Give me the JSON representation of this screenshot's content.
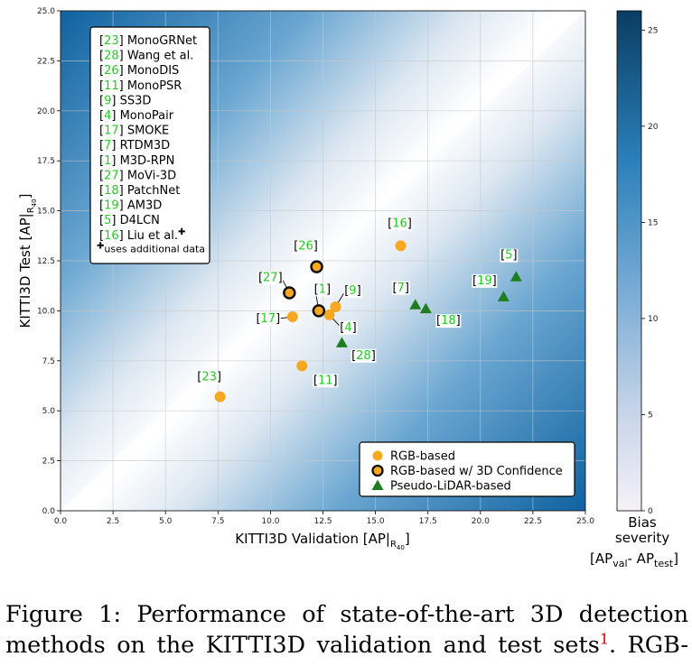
{
  "chart_data": {
    "type": "scatter",
    "xlabel": "KITTI3D Validation [AP|",
    "xlabel_sub": "R",
    "xlabel_subsub": "40",
    "xlabel_end": "]",
    "ylabel": "KITTI3D Test [AP|",
    "ylabel_sub": "R",
    "ylabel_subsub": "40",
    "ylabel_end": "]",
    "xlim": [
      0,
      25
    ],
    "ylim": [
      0,
      25
    ],
    "xticks": [
      "0.0",
      "2.5",
      "5.0",
      "7.5",
      "10.0",
      "12.5",
      "15.0",
      "17.5",
      "20.0",
      "22.5",
      "25.0"
    ],
    "yticks": [
      "0.0",
      "2.5",
      "5.0",
      "7.5",
      "10.0",
      "12.5",
      "15.0",
      "17.5",
      "20.0",
      "22.5",
      "25.0"
    ],
    "colorbar": {
      "range": [
        0,
        26
      ],
      "ticks": [
        "0",
        "5",
        "10",
        "15",
        "20",
        "25"
      ],
      "label_line1": "Bias",
      "label_line2": "severity",
      "label_formula_open": "[AP",
      "label_formula_sub1": "val",
      "label_formula_mid": "- AP",
      "label_formula_sub2": "test",
      "label_formula_close": "]"
    },
    "methods_legend": [
      {
        "ref": "23",
        "name": "MonoGRNet"
      },
      {
        "ref": "28",
        "name": "Wang et al."
      },
      {
        "ref": "26",
        "name": "MonoDIS"
      },
      {
        "ref": "11",
        "name": "MonoPSR"
      },
      {
        "ref": "9",
        "name": "SS3D"
      },
      {
        "ref": "4",
        "name": "MonoPair"
      },
      {
        "ref": "17",
        "name": "SMOKE"
      },
      {
        "ref": "7",
        "name": "RTDM3D"
      },
      {
        "ref": "1",
        "name": "M3D-RPN"
      },
      {
        "ref": "27",
        "name": "MoVi-3D"
      },
      {
        "ref": "18",
        "name": "PatchNet"
      },
      {
        "ref": "19",
        "name": "AM3D"
      },
      {
        "ref": "5",
        "name": "D4LCN"
      },
      {
        "ref": "16",
        "name": "Liu et al.",
        "mark": "✚"
      }
    ],
    "methods_footnote": "uses additional data",
    "methods_footnote_mark": "✚",
    "series": [
      {
        "name": "RGB-based",
        "marker": "circle",
        "color": "#f7a823",
        "points": [
          {
            "ref": "23",
            "x": 7.6,
            "y": 5.7
          },
          {
            "ref": "11",
            "x": 11.5,
            "y": 7.25
          },
          {
            "ref": "17",
            "x": 11.05,
            "y": 9.7
          },
          {
            "ref": "4",
            "x": 12.8,
            "y": 9.8
          },
          {
            "ref": "9",
            "x": 13.1,
            "y": 10.2
          },
          {
            "ref": "16",
            "x": 16.2,
            "y": 13.25
          }
        ]
      },
      {
        "name": "RGB-based w/ 3D Confidence",
        "marker": "circle-outlined",
        "color": "#f7a823",
        "points": [
          {
            "ref": "27",
            "x": 10.9,
            "y": 10.9
          },
          {
            "ref": "26",
            "x": 12.2,
            "y": 12.2
          },
          {
            "ref": "1",
            "x": 12.3,
            "y": 10.0
          }
        ]
      },
      {
        "name": "Pseudo-LiDAR-based",
        "marker": "triangle",
        "color": "#1e7d1e",
        "points": [
          {
            "ref": "28",
            "x": 13.4,
            "y": 8.4
          },
          {
            "ref": "7",
            "x": 16.9,
            "y": 10.3
          },
          {
            "ref": "18",
            "x": 17.4,
            "y": 10.1
          },
          {
            "ref": "19",
            "x": 21.1,
            "y": 10.7
          },
          {
            "ref": "5",
            "x": 21.7,
            "y": 11.7
          }
        ]
      }
    ]
  },
  "caption": {
    "line1": "Figure 1:  Performance of state-of-the-art 3D detection",
    "line2_text": "methods on the KITTI3D validation and test sets",
    "line2_footnote": "1",
    "line2_end": ". RGB-"
  }
}
